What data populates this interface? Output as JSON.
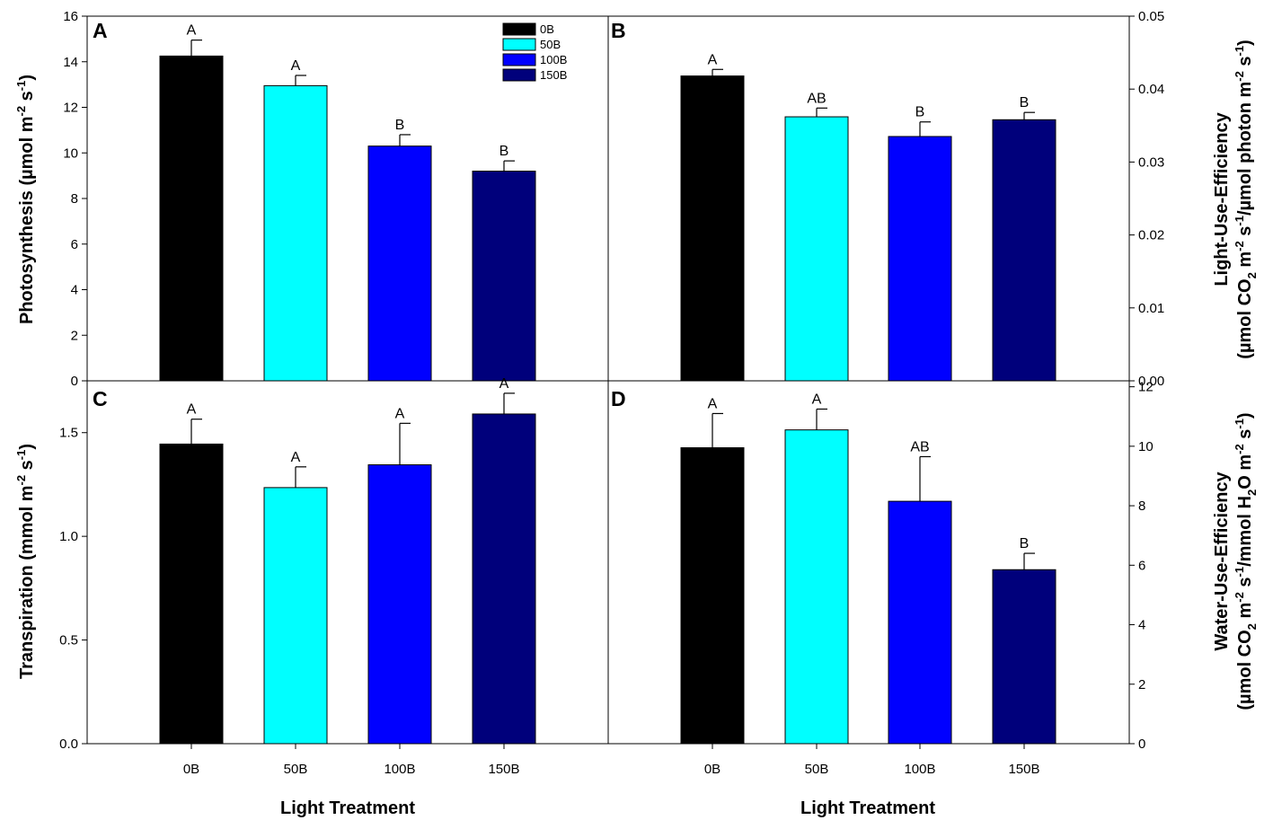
{
  "colors": {
    "0B": "#000000",
    "50B": "#00FFFF",
    "100B": "#0000FF",
    "150B": "#00007B"
  },
  "legend": {
    "entries": [
      "0B",
      "50B",
      "100B",
      "150B"
    ],
    "placement": "top-right of panel A"
  },
  "x_axis": {
    "title": "Light Treatment",
    "categories": [
      "0B",
      "50B",
      "100B",
      "150B"
    ]
  },
  "chart_data": [
    {
      "panel": "A",
      "type": "bar",
      "ylabel": "Photosynthesis (µmol m-2 s-1)",
      "ylabel_parts": {
        "main": "Photosynthesis (µmol m",
        "sup1": "-2",
        "mid": " s",
        "sup2": "-1",
        "end": ")"
      },
      "y_axis_side": "left",
      "ylim": [
        0,
        16
      ],
      "yticks": [
        "0",
        "2",
        "4",
        "6",
        "8",
        "10",
        "12",
        "14",
        "16"
      ],
      "categories": [
        "0B",
        "50B",
        "100B",
        "150B"
      ],
      "values": [
        14.25,
        12.95,
        10.3,
        9.2
      ],
      "errors": [
        0.7,
        0.45,
        0.5,
        0.45
      ],
      "significance": [
        "A",
        "A",
        "B",
        "B"
      ]
    },
    {
      "panel": "B",
      "type": "bar",
      "ylabel": "Light-Use-Efficiency (µmol CO2 m-2 s-1/µmol photon m-2 s-1)",
      "ylabel_line1": "Light-Use-Efficiency",
      "ylabel_line2_parts": {
        "a": "(µmol CO",
        "sub": "2",
        "b": " m",
        "sup1": "-2",
        "c": " s",
        "sup2": "-1",
        "d": "/µmol photon m",
        "sup3": "-2",
        "e": " s",
        "sup4": "-1",
        "f": ")"
      },
      "y_axis_side": "right",
      "ylim": [
        0,
        0.05
      ],
      "yticks": [
        "0.00",
        "0.01",
        "0.02",
        "0.03",
        "0.04",
        "0.05"
      ],
      "categories": [
        "0B",
        "50B",
        "100B",
        "150B"
      ],
      "values": [
        0.0418,
        0.0362,
        0.0335,
        0.0358
      ],
      "errors": [
        0.0009,
        0.0012,
        0.002,
        0.001
      ],
      "significance": [
        "A",
        "AB",
        "B",
        "B"
      ]
    },
    {
      "panel": "C",
      "type": "bar",
      "ylabel": "Transpiration (mmol m-2 s-1)",
      "ylabel_parts": {
        "main": "Transpiration (mmol m",
        "sup1": "-2",
        "mid": " s",
        "sup2": "-1",
        "end": ")"
      },
      "y_axis_side": "left",
      "ylim": [
        0,
        1.75
      ],
      "yticks": [
        "0.0",
        "0.5",
        "1.0",
        "1.5"
      ],
      "ytick_values": [
        0,
        0.5,
        1.0,
        1.5
      ],
      "categories": [
        "0B",
        "50B",
        "100B",
        "150B"
      ],
      "values": [
        1.445,
        1.235,
        1.345,
        1.59
      ],
      "errors": [
        0.12,
        0.1,
        0.2,
        0.1
      ],
      "significance": [
        "A",
        "A",
        "A",
        "A"
      ]
    },
    {
      "panel": "D",
      "type": "bar",
      "ylabel": "Water-Use-Efficiency (µmol CO2 m-2 s-1/mmol H2O m-2 s-1)",
      "ylabel_line1": "Water-Use-Efficiency",
      "ylabel_line2_parts": {
        "a": "(µmol CO",
        "sub": "2",
        "b": " m",
        "sup1": "-2",
        "c": " s",
        "sup2": "-1",
        "d": "/mmol H",
        "sub2": "2",
        "e": "O m",
        "sup3": "-2",
        "f": " s",
        "sup4": "-1",
        "g": ")"
      },
      "y_axis_side": "right",
      "ylim": [
        0,
        12.2
      ],
      "yticks": [
        "0",
        "2",
        "4",
        "6",
        "8",
        "10",
        "12"
      ],
      "ytick_values": [
        0,
        2,
        4,
        6,
        8,
        10,
        12
      ],
      "categories": [
        "0B",
        "50B",
        "100B",
        "150B"
      ],
      "values": [
        9.95,
        10.55,
        8.15,
        5.85
      ],
      "errors": [
        1.15,
        0.7,
        1.5,
        0.55
      ],
      "significance": [
        "A",
        "A",
        "AB",
        "B"
      ]
    }
  ]
}
